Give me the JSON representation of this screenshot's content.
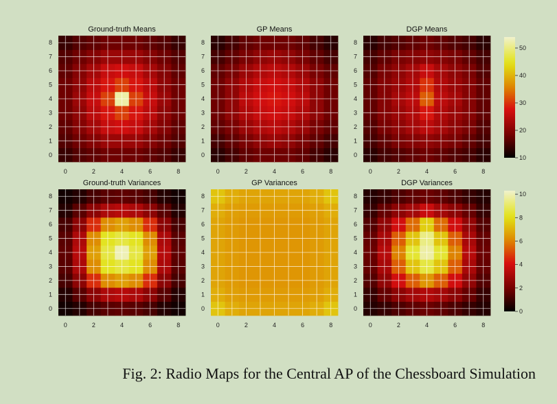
{
  "figure": {
    "caption": "Fig. 2: Radio Maps for the Central AP of the Chessboard Simulation"
  },
  "chart_data": [
    {
      "type": "heatmap",
      "title": "Ground-truth Means",
      "grid_size": 9,
      "x_ticks": [
        0,
        2,
        4,
        6,
        8
      ],
      "y_ticks": [
        0,
        1,
        2,
        3,
        4,
        5,
        6,
        7,
        8
      ],
      "colorbar": {
        "min": 10,
        "max": 54,
        "ticks": [
          10,
          20,
          30,
          40,
          50
        ]
      },
      "grid": true,
      "values": [
        [
          14,
          16,
          17,
          18,
          18,
          18,
          17,
          16,
          14
        ],
        [
          16,
          18,
          20,
          22,
          22,
          22,
          20,
          18,
          16
        ],
        [
          17,
          20,
          23,
          26,
          27,
          26,
          23,
          20,
          17
        ],
        [
          18,
          21,
          25,
          28,
          31,
          28,
          25,
          21,
          18
        ],
        [
          18,
          22,
          26,
          31,
          52,
          31,
          26,
          22,
          18
        ],
        [
          18,
          21,
          25,
          28,
          31,
          28,
          25,
          21,
          18
        ],
        [
          17,
          20,
          23,
          26,
          27,
          26,
          23,
          20,
          17
        ],
        [
          16,
          18,
          20,
          22,
          22,
          22,
          20,
          18,
          16
        ],
        [
          14,
          16,
          17,
          18,
          18,
          18,
          17,
          16,
          14
        ]
      ]
    },
    {
      "type": "heatmap",
      "title": "GP Means",
      "grid_size": 9,
      "x_ticks": [
        0,
        2,
        4,
        6,
        8
      ],
      "y_ticks": [
        0,
        1,
        2,
        3,
        4,
        5,
        6,
        7,
        8
      ],
      "colorbar": {
        "min": 10,
        "max": 54,
        "ticks": [
          10,
          20,
          30,
          40,
          50
        ]
      },
      "grid": true,
      "values": [
        [
          13,
          15,
          17,
          18,
          18,
          18,
          17,
          15,
          13
        ],
        [
          15,
          17,
          19,
          21,
          22,
          21,
          19,
          17,
          15
        ],
        [
          17,
          19,
          22,
          24,
          25,
          24,
          22,
          19,
          17
        ],
        [
          18,
          21,
          24,
          26,
          27,
          26,
          24,
          21,
          18
        ],
        [
          18,
          21,
          25,
          27,
          28,
          27,
          25,
          21,
          18
        ],
        [
          18,
          21,
          24,
          26,
          27,
          26,
          24,
          21,
          18
        ],
        [
          17,
          19,
          22,
          24,
          25,
          24,
          22,
          19,
          17
        ],
        [
          15,
          17,
          19,
          21,
          22,
          21,
          19,
          17,
          15
        ],
        [
          13,
          15,
          17,
          18,
          18,
          18,
          17,
          15,
          13
        ]
      ]
    },
    {
      "type": "heatmap",
      "title": "DGP Means",
      "grid_size": 9,
      "x_ticks": [
        0,
        2,
        4,
        6,
        8
      ],
      "y_ticks": [
        0,
        1,
        2,
        3,
        4,
        5,
        6,
        7,
        8
      ],
      "colorbar": {
        "min": 10,
        "max": 54,
        "ticks": [
          10,
          20,
          30,
          40,
          50
        ]
      },
      "grid": true,
      "values": [
        [
          13,
          15,
          16,
          17,
          18,
          17,
          16,
          15,
          13
        ],
        [
          15,
          17,
          19,
          20,
          21,
          20,
          19,
          17,
          15
        ],
        [
          16,
          19,
          21,
          23,
          25,
          23,
          21,
          19,
          16
        ],
        [
          17,
          20,
          22,
          24,
          28,
          24,
          22,
          20,
          17
        ],
        [
          17,
          20,
          23,
          25,
          33,
          25,
          23,
          20,
          17
        ],
        [
          17,
          20,
          22,
          24,
          30,
          24,
          22,
          20,
          17
        ],
        [
          16,
          19,
          21,
          23,
          26,
          23,
          21,
          19,
          16
        ],
        [
          15,
          17,
          19,
          20,
          21,
          20,
          19,
          17,
          15
        ],
        [
          13,
          15,
          16,
          17,
          18,
          17,
          16,
          15,
          13
        ]
      ]
    },
    {
      "type": "heatmap",
      "title": "Ground-truth Variances",
      "grid_size": 9,
      "x_ticks": [
        0,
        2,
        4,
        6,
        8
      ],
      "y_ticks": [
        0,
        1,
        2,
        3,
        4,
        5,
        6,
        7,
        8
      ],
      "colorbar": {
        "min": 0,
        "max": 10.3,
        "ticks": [
          0,
          2,
          4,
          6,
          8,
          10
        ]
      },
      "grid": true,
      "values": [
        [
          0.3,
          0.6,
          1.2,
          1.5,
          1.6,
          1.5,
          1.2,
          0.6,
          0.3
        ],
        [
          0.6,
          1.5,
          2.5,
          3.2,
          3.4,
          3.2,
          2.5,
          1.5,
          0.6
        ],
        [
          1.2,
          2.5,
          4.6,
          6.2,
          6.6,
          6.2,
          4.6,
          2.5,
          1.2
        ],
        [
          1.5,
          3.2,
          6.2,
          8.2,
          8.6,
          8.2,
          6.2,
          3.2,
          1.5
        ],
        [
          1.6,
          3.4,
          6.6,
          8.6,
          10.0,
          8.6,
          6.6,
          3.4,
          1.6
        ],
        [
          1.5,
          3.2,
          6.2,
          8.2,
          8.6,
          8.2,
          6.2,
          3.2,
          1.5
        ],
        [
          1.2,
          2.5,
          4.6,
          6.2,
          6.6,
          6.2,
          4.6,
          2.5,
          1.2
        ],
        [
          0.6,
          1.5,
          2.5,
          3.2,
          3.4,
          3.2,
          2.5,
          1.5,
          0.6
        ],
        [
          0.3,
          0.6,
          1.2,
          1.5,
          1.6,
          1.5,
          1.2,
          0.6,
          0.3
        ]
      ]
    },
    {
      "type": "heatmap",
      "title": "GP Variances",
      "grid_size": 9,
      "x_ticks": [
        0,
        2,
        4,
        6,
        8
      ],
      "y_ticks": [
        0,
        1,
        2,
        3,
        4,
        5,
        6,
        7,
        8
      ],
      "colorbar": {
        "min": 0,
        "max": 10.3,
        "ticks": [
          0,
          2,
          4,
          6,
          8,
          10
        ]
      },
      "grid": true,
      "values": [
        [
          7.4,
          6.9,
          6.7,
          6.7,
          6.7,
          6.7,
          6.7,
          6.9,
          7.4
        ],
        [
          6.9,
          6.6,
          6.5,
          6.5,
          6.5,
          6.5,
          6.5,
          6.6,
          6.9
        ],
        [
          6.7,
          6.5,
          6.4,
          6.4,
          6.4,
          6.4,
          6.4,
          6.5,
          6.7
        ],
        [
          6.7,
          6.5,
          6.4,
          6.4,
          6.4,
          6.4,
          6.4,
          6.5,
          6.7
        ],
        [
          6.7,
          6.5,
          6.4,
          6.4,
          6.4,
          6.4,
          6.4,
          6.5,
          6.7
        ],
        [
          6.7,
          6.5,
          6.4,
          6.4,
          6.4,
          6.4,
          6.4,
          6.5,
          6.7
        ],
        [
          6.7,
          6.5,
          6.4,
          6.4,
          6.4,
          6.4,
          6.4,
          6.5,
          6.7
        ],
        [
          6.9,
          6.6,
          6.5,
          6.5,
          6.5,
          6.5,
          6.5,
          6.6,
          6.9
        ],
        [
          7.4,
          6.9,
          6.7,
          6.7,
          6.7,
          6.7,
          6.7,
          6.9,
          7.4
        ]
      ]
    },
    {
      "type": "heatmap",
      "title": "DGP Variances",
      "grid_size": 9,
      "x_ticks": [
        0,
        2,
        4,
        6,
        8
      ],
      "y_ticks": [
        0,
        1,
        2,
        3,
        4,
        5,
        6,
        7,
        8
      ],
      "colorbar": {
        "min": 0,
        "max": 10.3,
        "ticks": [
          0,
          2,
          4,
          6,
          8,
          10
        ]
      },
      "grid": true,
      "values": [
        [
          0.6,
          0.9,
          1.3,
          1.6,
          1.8,
          1.6,
          1.3,
          0.9,
          0.6
        ],
        [
          0.9,
          1.7,
          2.5,
          3.0,
          3.3,
          3.0,
          2.5,
          1.7,
          0.9
        ],
        [
          1.4,
          2.6,
          4.0,
          5.4,
          6.4,
          5.4,
          4.0,
          2.6,
          1.4
        ],
        [
          1.7,
          3.1,
          5.4,
          7.4,
          8.6,
          7.4,
          5.4,
          3.1,
          1.7
        ],
        [
          1.8,
          3.4,
          6.0,
          8.4,
          9.8,
          8.4,
          6.0,
          3.4,
          1.8
        ],
        [
          1.7,
          3.1,
          5.4,
          7.4,
          9.4,
          7.4,
          5.4,
          3.1,
          1.7
        ],
        [
          1.4,
          2.6,
          4.0,
          5.6,
          7.6,
          5.6,
          4.0,
          2.6,
          1.4
        ],
        [
          0.9,
          1.7,
          2.5,
          3.0,
          3.8,
          3.0,
          2.5,
          1.7,
          0.9
        ],
        [
          0.6,
          0.9,
          1.3,
          1.6,
          1.8,
          1.6,
          1.3,
          0.9,
          0.6
        ]
      ]
    }
  ]
}
